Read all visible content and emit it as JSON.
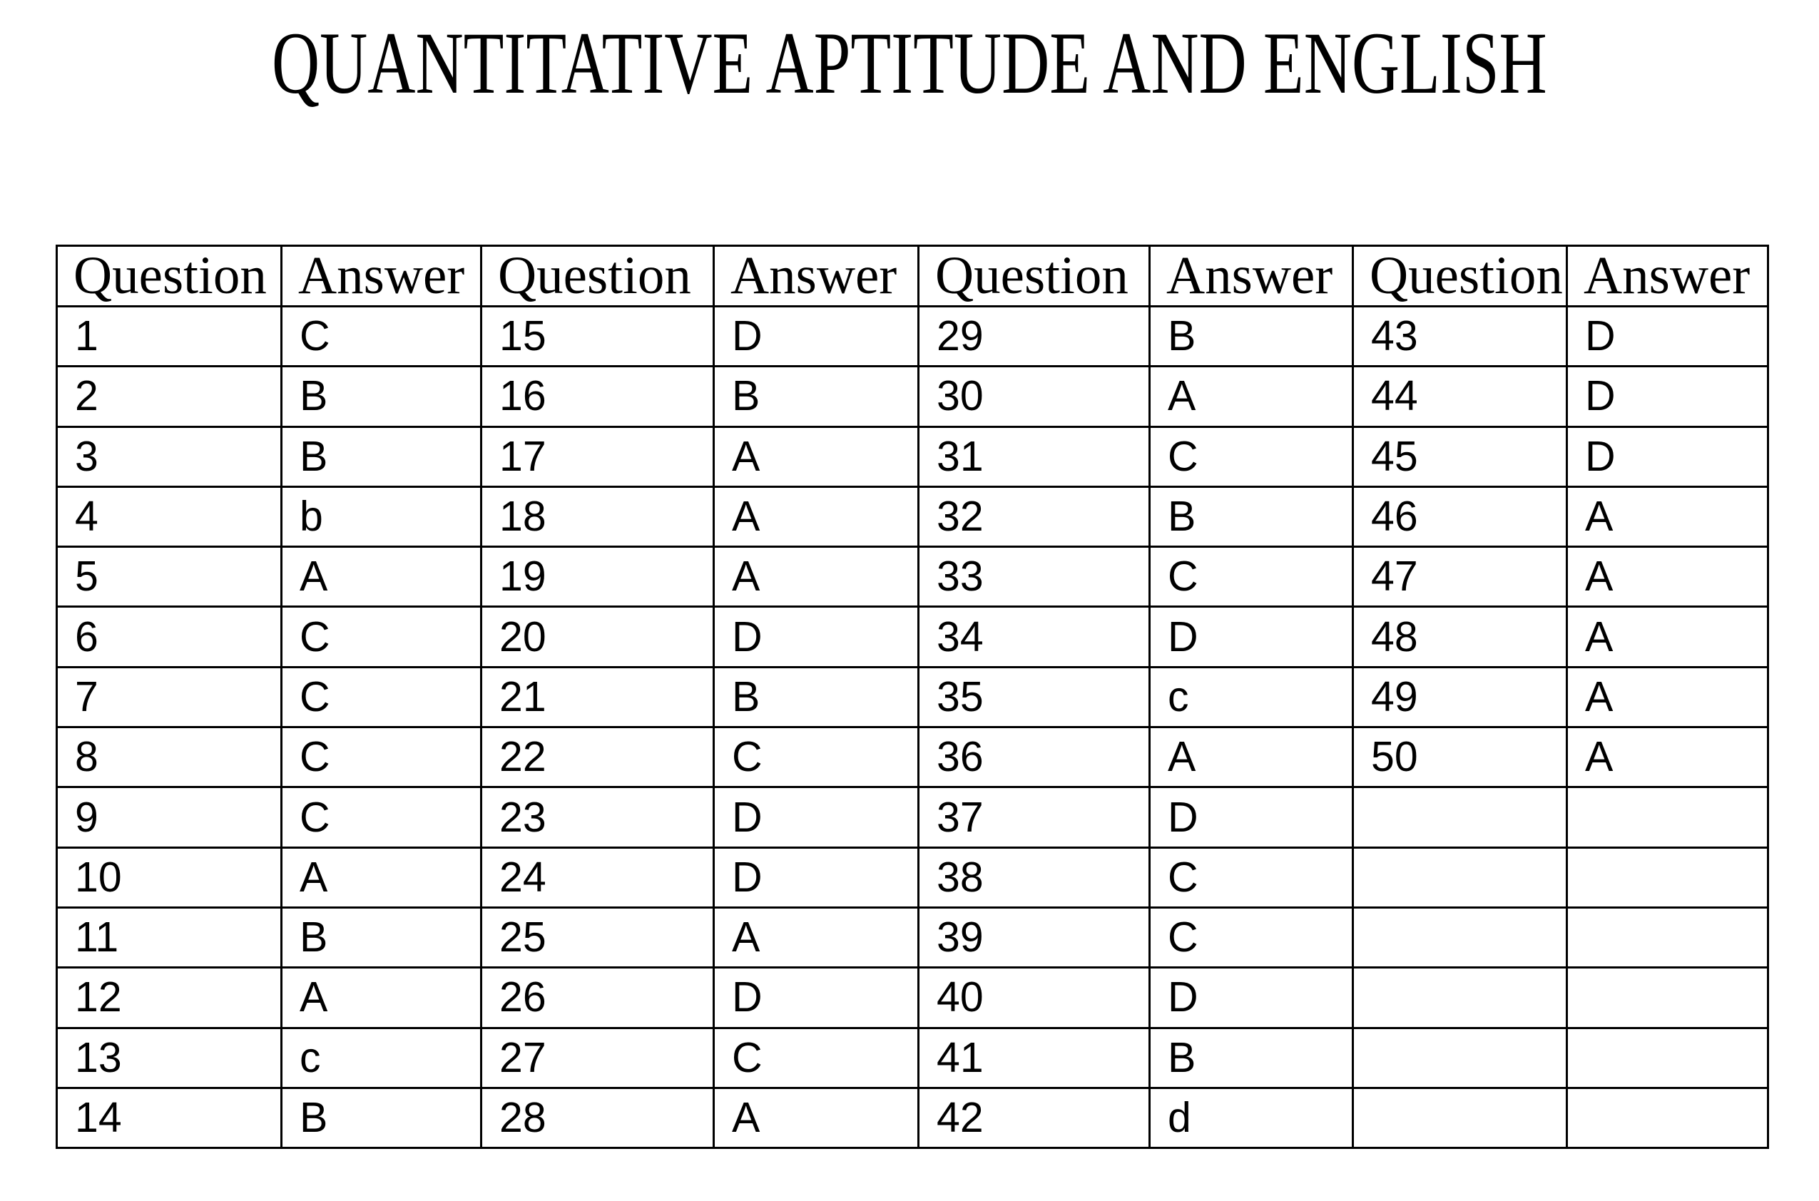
{
  "page": {
    "title": "QUANTITATIVE APTITUDE AND ENGLISH"
  },
  "table": {
    "header_labels": [
      "Question",
      "Answer",
      "Question",
      "Answer",
      "Question",
      "Answer",
      "Question",
      "Answer"
    ],
    "num_display_rows": 14,
    "column_pairs": 4,
    "answer_key": [
      {
        "question": "1",
        "answer": "C"
      },
      {
        "question": "2",
        "answer": "B"
      },
      {
        "question": "3",
        "answer": "B"
      },
      {
        "question": "4",
        "answer": "b"
      },
      {
        "question": "5",
        "answer": "A"
      },
      {
        "question": "6",
        "answer": "C"
      },
      {
        "question": "7",
        "answer": "C"
      },
      {
        "question": "8",
        "answer": "C"
      },
      {
        "question": "9",
        "answer": "C"
      },
      {
        "question": "10",
        "answer": "A"
      },
      {
        "question": "11",
        "answer": "B"
      },
      {
        "question": "12",
        "answer": "A"
      },
      {
        "question": "13",
        "answer": "c"
      },
      {
        "question": "14",
        "answer": "B"
      },
      {
        "question": "15",
        "answer": "D"
      },
      {
        "question": "16",
        "answer": "B"
      },
      {
        "question": "17",
        "answer": "A"
      },
      {
        "question": "18",
        "answer": "A"
      },
      {
        "question": "19",
        "answer": "A"
      },
      {
        "question": "20",
        "answer": "D"
      },
      {
        "question": "21",
        "answer": "B"
      },
      {
        "question": "22",
        "answer": "C"
      },
      {
        "question": "23",
        "answer": "D"
      },
      {
        "question": "24",
        "answer": "D"
      },
      {
        "question": "25",
        "answer": "A"
      },
      {
        "question": "26",
        "answer": "D"
      },
      {
        "question": "27",
        "answer": "C"
      },
      {
        "question": "28",
        "answer": "A"
      },
      {
        "question": "29",
        "answer": "B"
      },
      {
        "question": "30",
        "answer": "A"
      },
      {
        "question": "31",
        "answer": "C"
      },
      {
        "question": "32",
        "answer": "B"
      },
      {
        "question": "33",
        "answer": "C"
      },
      {
        "question": "34",
        "answer": "D"
      },
      {
        "question": "35",
        "answer": "c"
      },
      {
        "question": "36",
        "answer": "A"
      },
      {
        "question": "37",
        "answer": "D"
      },
      {
        "question": "38",
        "answer": "C"
      },
      {
        "question": "39",
        "answer": "C"
      },
      {
        "question": "40",
        "answer": "D"
      },
      {
        "question": "41",
        "answer": "B"
      },
      {
        "question": "42",
        "answer": "d"
      },
      {
        "question": "43",
        "answer": "D"
      },
      {
        "question": "44",
        "answer": "D"
      },
      {
        "question": "45",
        "answer": "D"
      },
      {
        "question": "46",
        "answer": "A"
      },
      {
        "question": "47",
        "answer": "A"
      },
      {
        "question": "48",
        "answer": "A"
      },
      {
        "question": "49",
        "answer": "A"
      },
      {
        "question": "50",
        "answer": "A"
      }
    ]
  }
}
